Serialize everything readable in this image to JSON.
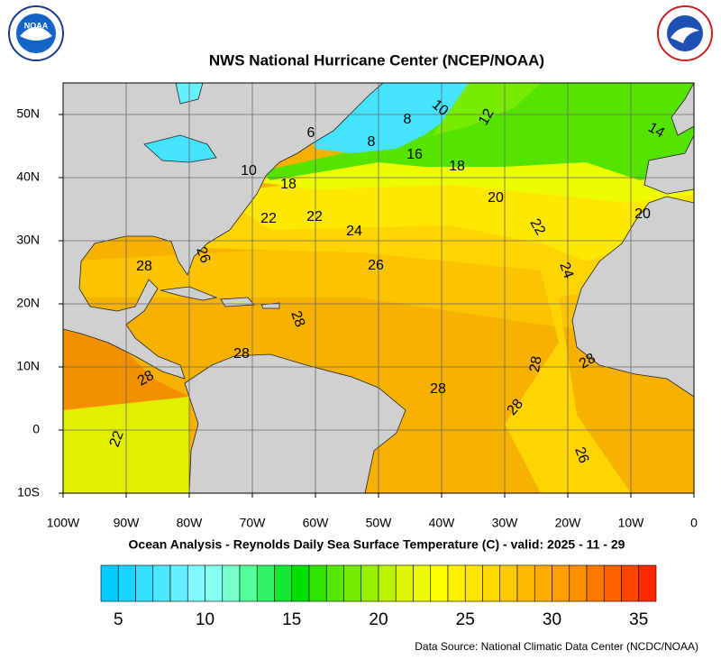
{
  "header": {
    "title": "NWS National Hurricane Center (NCEP/NOAA)"
  },
  "map": {
    "lon_labels": [
      "100W",
      "90W",
      "80W",
      "70W",
      "60W",
      "50W",
      "40W",
      "30W",
      "20W",
      "10W",
      "0"
    ],
    "lat_labels": [
      "50N",
      "40N",
      "30N",
      "20N",
      "10N",
      "0",
      "10S"
    ],
    "contour_labels": [
      "10",
      "8",
      "12",
      "6",
      "8",
      "16",
      "18",
      "14",
      "10",
      "18",
      "20",
      "22",
      "22",
      "24",
      "22",
      "20",
      "26",
      "28",
      "26",
      "24",
      "28",
      "28",
      "28",
      "28",
      "28",
      "28",
      "28",
      "22",
      "26"
    ]
  },
  "caption": "Ocean Analysis - Reynolds Daily Sea Surface Temperature (C) - valid: 2025 - 11 - 29",
  "colorbar": {
    "range": [
      4,
      36
    ],
    "ticks": [
      5,
      10,
      15,
      20,
      25,
      30,
      35
    ],
    "colors": [
      "#00ccff",
      "#1ad6ff",
      "#33e0ff",
      "#4de8ff",
      "#66f0ff",
      "#80f8ff",
      "#88ffee",
      "#77ffcc",
      "#55ff99",
      "#33f066",
      "#11e833",
      "#00e000",
      "#33e400",
      "#55e800",
      "#77ec00",
      "#99f000",
      "#bbf400",
      "#ddf800",
      "#eefc00",
      "#ffff00",
      "#fff200",
      "#ffe600",
      "#ffd800",
      "#ffca00",
      "#ffbc00",
      "#ffae00",
      "#ffa000",
      "#ff9000",
      "#ff7800",
      "#ff6000",
      "#ff4400",
      "#ff2800"
    ]
  },
  "source": "Data Source: National Climatic Data Center (NCDC/NOAA)"
}
